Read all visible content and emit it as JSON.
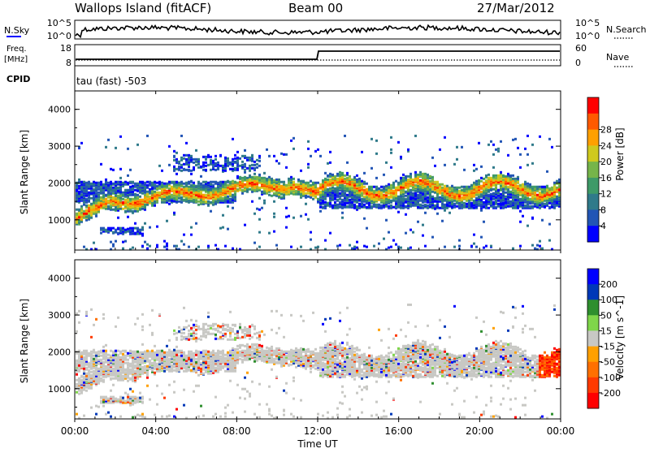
{
  "header": {
    "station": "Wallops Island (fitACF)",
    "beam": "Beam 00",
    "date": "27/Mar/2012"
  },
  "strips": {
    "nsky_label": "N.Sky",
    "nsky_tick_top": "10^5",
    "nsky_tick_bottom": "10^0",
    "nsearch_label": "N.Search",
    "nsearch_tick_top": "10^5",
    "nsearch_tick_bottom": "10^0",
    "freq_label": "Freq.",
    "freq_unit": "[MHz]",
    "freq_tick_top": "18",
    "freq_tick_bottom": "8",
    "nave_label": "Nave",
    "nave_tick_top": "60",
    "nave_tick_bottom": "0",
    "cpid_label": "CPID",
    "cpid_value": "tau (fast) -503"
  },
  "time_axis": {
    "label": "Time UT",
    "ticks": [
      "00:00",
      "04:00",
      "08:00",
      "12:00",
      "16:00",
      "20:00",
      "00:00"
    ]
  },
  "chart_data": [
    {
      "type": "heatmap",
      "ylabel": "Slant Range [km]",
      "xlabel": "Time UT",
      "ylim": [
        180,
        4500
      ],
      "y_ticks": [
        "1000",
        "2000",
        "3000",
        "4000"
      ],
      "x_ticks": [
        "00:00",
        "04:00",
        "08:00",
        "12:00",
        "16:00",
        "20:00",
        "00:00"
      ],
      "colorbar": {
        "label": "Power [dB]",
        "ticks": [
          "4",
          "8",
          "12",
          "16",
          "20",
          "24",
          "28"
        ],
        "colors": [
          "#0000ff",
          "#2255b5",
          "#2f7a8a",
          "#3e9a68",
          "#76b54a",
          "#cfc91e",
          "#ffa000",
          "#ff5a00",
          "#ff0000"
        ]
      }
    },
    {
      "type": "heatmap",
      "ylabel": "Slant Range [km]",
      "xlabel": "Time UT",
      "ylim": [
        180,
        4500
      ],
      "y_ticks": [
        "1000",
        "2000",
        "3000",
        "4000"
      ],
      "x_ticks": [
        "00:00",
        "04:00",
        "08:00",
        "12:00",
        "16:00",
        "20:00",
        "00:00"
      ],
      "colorbar": {
        "label": "Velocity [m s^-1]",
        "ticks": [
          "200",
          "100",
          "50",
          "15",
          "-15",
          "-50",
          "-100",
          "-200"
        ],
        "colors": [
          "#0000ff",
          "#0038b8",
          "#2e8f2e",
          "#7fd64a",
          "#c8c8c4",
          "#ffa000",
          "#ff7000",
          "#ff3a00",
          "#ff0000"
        ]
      }
    }
  ]
}
